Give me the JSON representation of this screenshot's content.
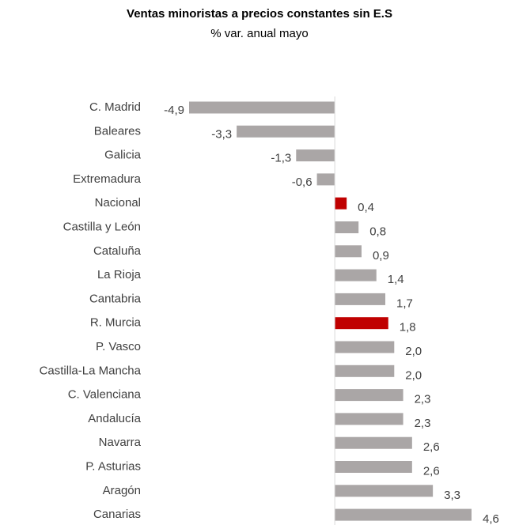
{
  "chart_data": {
    "type": "bar",
    "orientation": "horizontal",
    "title": "Ventas minoristas a precios constantes sin E.S",
    "subtitle": "% var. anual mayo",
    "categories": [
      "C. Madrid",
      "Baleares",
      "Galicia",
      "Extremadura",
      "Nacional",
      "Castilla y León",
      "Cataluña",
      "La Rioja",
      "Cantabria",
      "R. Murcia",
      "P. Vasco",
      "Castilla-La Mancha",
      "C. Valenciana",
      "Andalucía",
      "Navarra",
      "P. Asturias",
      "Aragón",
      "Canarias"
    ],
    "values": [
      -4.9,
      -3.3,
      -1.3,
      -0.6,
      0.4,
      0.8,
      0.9,
      1.4,
      1.7,
      1.8,
      2.0,
      2.0,
      2.3,
      2.3,
      2.6,
      2.6,
      3.3,
      4.6
    ],
    "value_labels": [
      "-4,9",
      "-3,3",
      "-1,3",
      "-0,6",
      "0,4",
      "0,8",
      "0,9",
      "1,4",
      "1,7",
      "1,8",
      "2,0",
      "2,0",
      "2,3",
      "2,3",
      "2,6",
      "2,6",
      "3,3",
      "4,6"
    ],
    "colors": [
      "#aaa6a6",
      "#aaa6a6",
      "#aaa6a6",
      "#aaa6a6",
      "#c00000",
      "#aaa6a6",
      "#aaa6a6",
      "#aaa6a6",
      "#aaa6a6",
      "#c00000",
      "#aaa6a6",
      "#aaa6a6",
      "#aaa6a6",
      "#aaa6a6",
      "#aaa6a6",
      "#aaa6a6",
      "#aaa6a6",
      "#aaa6a6"
    ]
  }
}
